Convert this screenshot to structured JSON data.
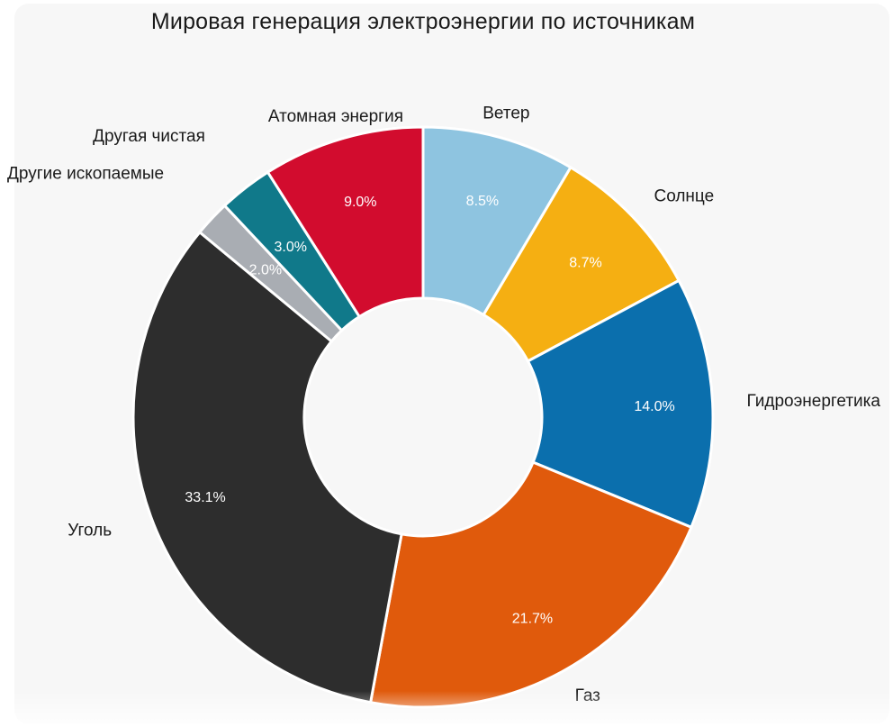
{
  "chart_data": {
    "type": "pie",
    "donut": true,
    "title": "Мировая генерация электроэнергии по источникам",
    "categories": [
      "Ветер",
      "Солнце",
      "Гидроэнергетика",
      "Газ",
      "Уголь",
      "Другие ископаемые",
      "Другая чистая",
      "Атомная энергия"
    ],
    "values": [
      8.5,
      8.7,
      14.0,
      21.7,
      33.1,
      2.0,
      3.0,
      9.0
    ],
    "value_labels": [
      "8.5%",
      "8.7%",
      "14.0%",
      "21.7%",
      "33.1%",
      "2.0%",
      "3.0%",
      "9.0%"
    ],
    "colors": [
      "#8ec4e0",
      "#f5af12",
      "#0b6fad",
      "#e05a0c",
      "#2d2d2d",
      "#a9adb3",
      "#10798a",
      "#d20c2e"
    ],
    "legend": "none",
    "start_angle_deg": 0,
    "direction": "clockwise"
  }
}
